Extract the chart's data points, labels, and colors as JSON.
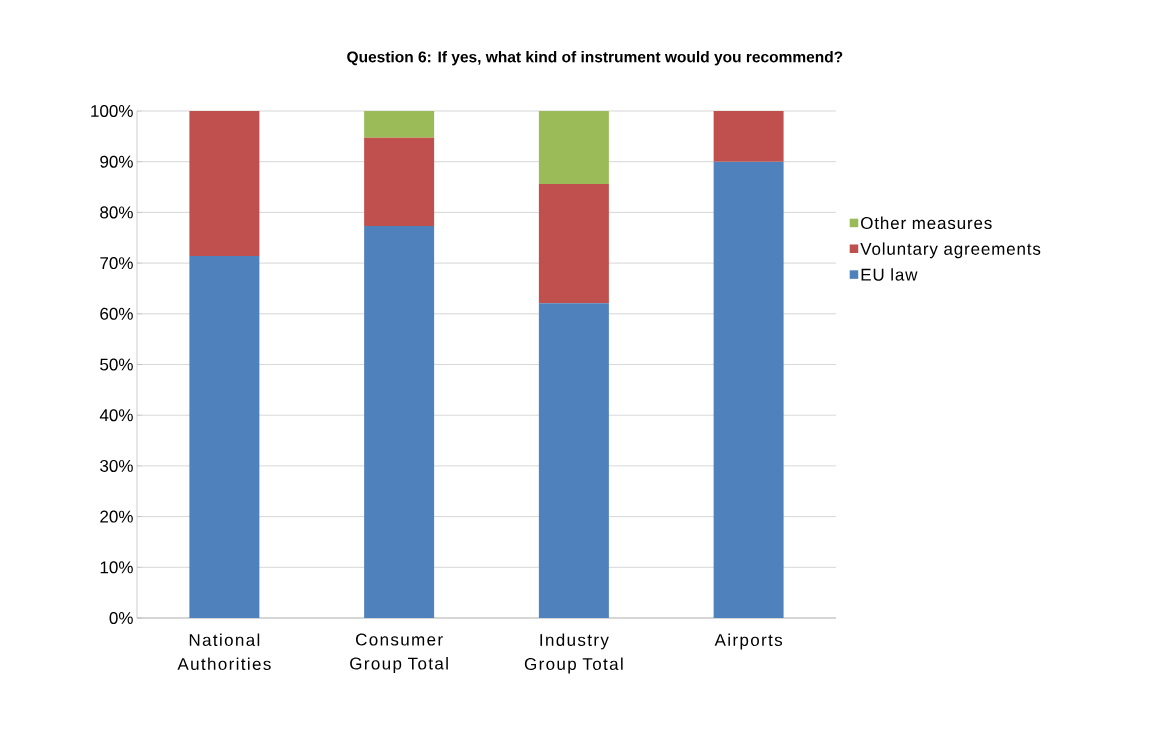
{
  "chart_data": {
    "type": "bar",
    "stacked": true,
    "title": "Question 6: If yes, what kind of instrument would you recommend?",
    "categories": [
      "National Authorities",
      "Consumer Group Total",
      "Industry Group Total",
      "Airports"
    ],
    "series": [
      {
        "name": "EU law",
        "color": "#4f81bd",
        "values": [
          71.4,
          77.3,
          62.1,
          90
        ]
      },
      {
        "name": "Voluntary agreements",
        "color": "#c0504d",
        "values": [
          28.6,
          17.4,
          23.5,
          10
        ]
      },
      {
        "name": "Other measures",
        "color": "#9bbb59",
        "values": [
          0,
          5.3,
          14.4,
          0
        ]
      }
    ],
    "ylim": [
      0,
      100
    ],
    "yticks": [
      {
        "value": 0,
        "label": "0%"
      },
      {
        "value": 10,
        "label": "10%"
      },
      {
        "value": 20,
        "label": "20%"
      },
      {
        "value": 30,
        "label": "30%"
      },
      {
        "value": 40,
        "label": "40%"
      },
      {
        "value": 50,
        "label": "50%"
      },
      {
        "value": 60,
        "label": "60%"
      },
      {
        "value": 70,
        "label": "70%"
      },
      {
        "value": 80,
        "label": "80%"
      },
      {
        "value": 90,
        "label": "90%"
      },
      {
        "value": 100,
        "label": "100%"
      }
    ],
    "grid": "y",
    "legend": "right"
  }
}
